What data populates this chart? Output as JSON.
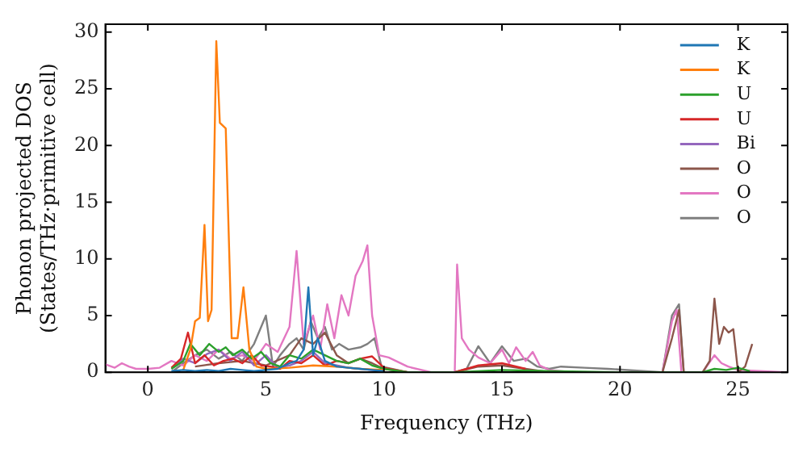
{
  "chart_data": {
    "type": "line",
    "xlabel": "Frequency (THz)",
    "ylabel": "Phonon projected DOS\n(States/THz·primitive cell)",
    "xlim": [
      -1.8,
      27.1
    ],
    "ylim": [
      0,
      30.7
    ],
    "xticks": [
      0,
      5,
      10,
      15,
      20,
      25
    ],
    "yticks": [
      0,
      5,
      10,
      15,
      20,
      25,
      30
    ],
    "grid": false,
    "legend": "top right",
    "marker": "none",
    "line_style": "solid",
    "series": [
      {
        "name": "K",
        "color": "#1f77b4",
        "x": [
          1,
          1.5,
          2,
          2.5,
          3,
          3.5,
          4,
          4.5,
          5,
          5.5,
          6,
          6.3,
          6.6,
          6.8,
          7,
          7.2,
          7.5,
          8,
          8.5,
          9,
          9.5,
          10
        ],
        "values": [
          0.1,
          0.2,
          0.1,
          0.2,
          0.1,
          0.3,
          0.2,
          0.1,
          0.2,
          0.3,
          0.8,
          1,
          2,
          7.5,
          1.5,
          3,
          1,
          0.5,
          0.4,
          0.3,
          0.2,
          0.1
        ]
      },
      {
        "name": "K",
        "color": "#ff7f0e",
        "x": [
          1.5,
          1.8,
          2,
          2.2,
          2.4,
          2.55,
          2.7,
          2.9,
          3.05,
          3.3,
          3.55,
          3.8,
          4.05,
          4.3,
          4.6,
          5,
          6,
          7,
          8,
          9,
          10
        ],
        "values": [
          0.2,
          2,
          4.5,
          4.8,
          13,
          4.5,
          5.5,
          29.2,
          22,
          21.5,
          3,
          3,
          7.5,
          2,
          0.5,
          0.3,
          0.4,
          0.6,
          0.5,
          0.3,
          0.2
        ]
      },
      {
        "name": "U",
        "color": "#2ca02c",
        "x": [
          1,
          1.5,
          1.8,
          2.2,
          2.6,
          3,
          3.3,
          3.6,
          4,
          4.4,
          4.8,
          5.2,
          5.6,
          6,
          6.5,
          7,
          7.5,
          8,
          8.5,
          9,
          9.5,
          10,
          11,
          13,
          15,
          17,
          20,
          23.5,
          24,
          24.5,
          25,
          25.5
        ],
        "values": [
          0.3,
          1,
          2.5,
          1.5,
          2.5,
          1.8,
          2.2,
          1.5,
          2,
          1.2,
          1.8,
          0.8,
          0.5,
          1.5,
          1.2,
          2,
          1.5,
          1,
          0.8,
          1.2,
          0.6,
          0.3,
          0,
          0,
          0.2,
          0.1,
          0,
          0,
          0.3,
          0.2,
          0.4,
          0.1
        ]
      },
      {
        "name": "U",
        "color": "#d62728",
        "x": [
          1,
          1.4,
          1.7,
          2,
          2.4,
          2.8,
          3.2,
          3.6,
          4,
          4.4,
          4.8,
          5.2,
          5.6,
          6,
          6.5,
          7,
          7.5,
          8,
          8.5,
          9,
          9.5,
          10,
          11,
          13,
          14,
          15,
          16
        ],
        "values": [
          0.4,
          1.2,
          3.5,
          0.8,
          1.5,
          0.6,
          1,
          1.2,
          0.8,
          1.5,
          0.6,
          0.5,
          0.3,
          1,
          0.8,
          1.5,
          0.6,
          1,
          0.8,
          1.2,
          1.4,
          0.4,
          0,
          0,
          0.6,
          0.8,
          0.3
        ]
      },
      {
        "name": "Bi",
        "color": "#9467bd",
        "x": [
          1,
          1.5,
          2,
          2.5,
          3,
          3.5,
          4,
          4.5,
          5,
          5.5,
          6,
          6.5,
          7,
          7.5,
          8,
          8.5,
          9,
          10
        ],
        "values": [
          0.3,
          1.2,
          0.8,
          1.6,
          2,
          1,
          1.8,
          0.6,
          1.5,
          0.4,
          0.6,
          1,
          1.8,
          0.8,
          0.6,
          0.4,
          0.3,
          0.1
        ]
      },
      {
        "name": "O",
        "color": "#8c564b",
        "x": [
          2,
          3,
          4,
          5,
          6,
          6.5,
          7,
          7.5,
          8,
          8.5,
          9,
          9.5,
          10,
          11,
          13,
          14,
          15,
          16,
          17,
          21.8,
          22.2,
          22.5,
          22.7,
          23.5,
          23.8,
          24,
          24.2,
          24.4,
          24.6,
          24.8,
          25,
          25.3,
          25.6
        ],
        "values": [
          0.5,
          0.8,
          1,
          0.6,
          1.5,
          3,
          2.5,
          3.5,
          1.5,
          0.8,
          1.2,
          0.8,
          0.3,
          0,
          0,
          0.5,
          0.6,
          0.3,
          0,
          0,
          3,
          5.5,
          0,
          0,
          1,
          6.5,
          2.5,
          4,
          3.5,
          3.8,
          0,
          0.5,
          2.5
        ]
      },
      {
        "name": "O",
        "color": "#e377c2",
        "x": [
          -1.8,
          -1.4,
          -1.1,
          -0.8,
          -0.5,
          0,
          0.5,
          1,
          1.5,
          2,
          2.5,
          3,
          3.5,
          4,
          4.5,
          5,
          5.5,
          6,
          6.3,
          6.6,
          7,
          7.3,
          7.6,
          7.9,
          8.2,
          8.5,
          8.8,
          9.1,
          9.3,
          9.5,
          9.8,
          10.2,
          11,
          12,
          13,
          13.1,
          13.3,
          13.6,
          14,
          14.5,
          15,
          15.3,
          15.6,
          16,
          16.3,
          16.6,
          17,
          18,
          21.8,
          22.2,
          22.4,
          22.6,
          23.5,
          24,
          24.3,
          24.6,
          25,
          27
        ],
        "values": [
          0.7,
          0.4,
          0.8,
          0.5,
          0.3,
          0.3,
          0.4,
          1,
          0.6,
          1.5,
          1,
          2,
          1.2,
          1.5,
          1,
          2.5,
          1.8,
          4,
          10.7,
          2.5,
          5,
          2,
          6,
          3,
          6.8,
          5,
          8.5,
          9.8,
          11.2,
          5,
          1.5,
          1.3,
          0.5,
          0,
          0,
          9.5,
          3,
          2,
          1.3,
          0.8,
          2,
          0.8,
          2.2,
          1,
          1.8,
          0.6,
          0.2,
          0,
          0,
          4.5,
          5.5,
          0,
          0,
          1.5,
          0.8,
          0.5,
          0.2,
          0
        ]
      },
      {
        "name": "O",
        "color": "#7f7f7f",
        "x": [
          -1.8,
          1,
          1.5,
          2,
          2.5,
          3,
          3.5,
          4,
          4.5,
          5,
          5.3,
          5.6,
          6,
          6.3,
          6.6,
          6.9,
          7.2,
          7.5,
          7.8,
          8.1,
          8.5,
          9,
          9.3,
          9.6,
          9.9,
          11,
          13,
          13.5,
          14,
          14.5,
          15,
          15.5,
          16,
          16.5,
          17,
          17.5,
          18.5,
          19.5,
          21.8,
          22.2,
          22.5,
          22.7,
          27
        ],
        "values": [
          0,
          0,
          0.8,
          1.5,
          2,
          1.2,
          1.8,
          1,
          2.5,
          5,
          0.5,
          1.5,
          2.5,
          3,
          2,
          4.5,
          3,
          4,
          2,
          2.5,
          2,
          2.2,
          2.5,
          3,
          0.5,
          0,
          0,
          0.3,
          2.3,
          0.8,
          2.3,
          1,
          1.2,
          0.5,
          0.3,
          0.5,
          0.4,
          0.3,
          0,
          5,
          6,
          0,
          0
        ]
      }
    ]
  }
}
